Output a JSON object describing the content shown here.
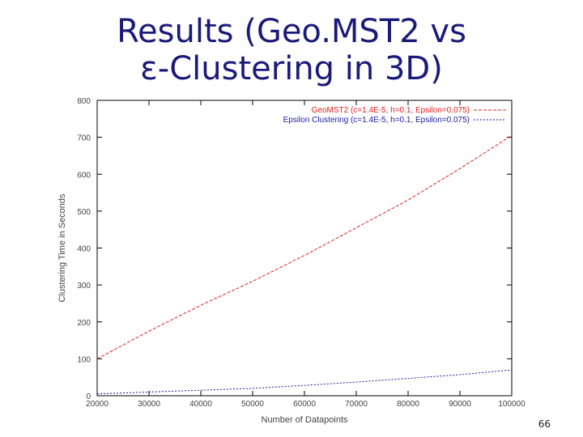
{
  "slide": {
    "title_line1": "Results (Geo.MST2 vs",
    "title_line2": "ε-Clustering in 3D)",
    "page_number": "66"
  },
  "chart_data": {
    "type": "line",
    "title": "",
    "xlabel": "Number of Datapoints",
    "ylabel": "Clustering Time in Seconds",
    "xlim": [
      20000,
      100000
    ],
    "ylim": [
      0,
      800
    ],
    "xticks": [
      20000,
      30000,
      40000,
      50000,
      60000,
      70000,
      80000,
      90000,
      100000
    ],
    "yticks": [
      0,
      100,
      200,
      300,
      400,
      500,
      600,
      700,
      800
    ],
    "grid": false,
    "legend_position": "top-right",
    "series": [
      {
        "name": "GeoMST2 (c=1.4E-5, h=0.1, Epsilon=0.075)",
        "color": "#e02020",
        "dash": "dashed",
        "x": [
          20000,
          30000,
          40000,
          50000,
          60000,
          70000,
          80000,
          90000,
          100000
        ],
        "y": [
          100,
          175,
          245,
          310,
          380,
          455,
          530,
          615,
          705
        ]
      },
      {
        "name": "Epsilon Clustering (c=1.4E-5, h=0.1, Epsilon=0.075)",
        "color": "#1a1aa0",
        "dash": "dotted",
        "x": [
          20000,
          30000,
          40000,
          50000,
          60000,
          70000,
          80000,
          90000,
          100000
        ],
        "y": [
          5,
          10,
          15,
          20,
          28,
          37,
          47,
          57,
          70
        ]
      }
    ]
  }
}
